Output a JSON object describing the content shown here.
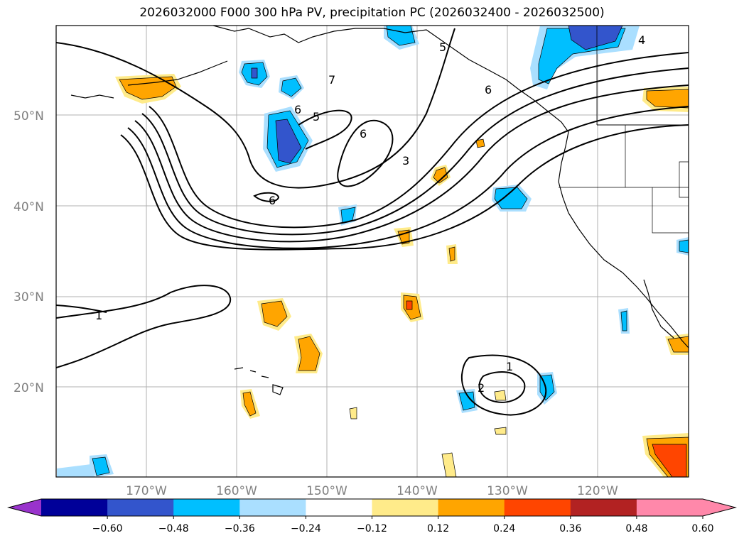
{
  "title": "2026032000 F000 300 hPa PV, precipitation PC (2026032400 - 2026032500)",
  "map": {
    "lat_labels": [
      "50°N",
      "40°N",
      "30°N",
      "20°N"
    ],
    "lon_labels": [
      "170°W",
      "160°W",
      "150°W",
      "140°W",
      "130°W",
      "120°W"
    ],
    "contour_labels": [
      "1",
      "1",
      "2",
      "3",
      "4",
      "5",
      "5",
      "6",
      "6",
      "6",
      "6",
      "7"
    ]
  },
  "colorbar": {
    "ticks": [
      "−0.60",
      "−0.48",
      "−0.36",
      "−0.24",
      "−0.12",
      "0.12",
      "0.24",
      "0.36",
      "0.48",
      "0.60"
    ],
    "colors": {
      "under": "#9933cc",
      "bins": [
        "#000099",
        "#3355cc",
        "#00bfff",
        "#aadfff",
        "#ffffff",
        "#ffeb8a",
        "#ffa500",
        "#ff4500",
        "#b22222",
        "#ff88aa"
      ],
      "over": "#ff88aa"
    }
  },
  "colors": {
    "gridline": "#b0b0b0",
    "coast": "#000000",
    "axis_label": "#808080"
  }
}
